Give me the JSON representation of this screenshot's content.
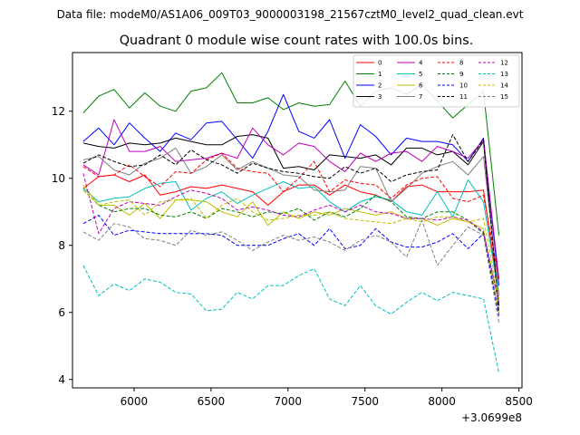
{
  "chart_data": {
    "type": "line",
    "suptitle": "Data file: modeM0/AS1A06_009T03_9000003198_21567cztM0_level2_quad_clean.evt",
    "title": "Quadrant 0 module wise count rates with 100.0s bins.",
    "xlabel": "",
    "ylabel": "",
    "offset_label": "+3.0699e8",
    "xlim": [
      5600,
      8520
    ],
    "ylim": [
      3.75,
      13.75
    ],
    "xticks": [
      6000,
      6500,
      7000,
      7500,
      8000,
      8500
    ],
    "yticks": [
      4,
      6,
      8,
      10,
      12
    ],
    "grid": false,
    "legend_position": "top-right",
    "x": [
      5670,
      5770,
      5870,
      5970,
      6070,
      6170,
      6270,
      6370,
      6470,
      6570,
      6670,
      6770,
      6870,
      6970,
      7070,
      7170,
      7270,
      7370,
      7470,
      7570,
      7670,
      7770,
      7870,
      7970,
      8070,
      8170,
      8270,
      8370
    ],
    "series": [
      {
        "name": "0",
        "color": "#ff0000",
        "dash": "solid",
        "values": [
          9.7,
          10.05,
          10.1,
          9.9,
          10.1,
          9.5,
          9.6,
          9.75,
          9.7,
          9.8,
          9.7,
          9.6,
          9.2,
          9.6,
          9.8,
          9.8,
          9.5,
          9.8,
          9.6,
          9.5,
          9.3,
          9.75,
          9.8,
          9.6,
          9.6,
          9.6,
          9.65,
          6.5
        ]
      },
      {
        "name": "1",
        "color": "#008000",
        "dash": "solid",
        "values": [
          11.95,
          12.45,
          12.65,
          12.1,
          12.55,
          12.15,
          12.0,
          12.6,
          12.7,
          13.15,
          12.25,
          12.25,
          12.4,
          12.05,
          12.25,
          12.15,
          12.2,
          12.9,
          12.15,
          12.6,
          12.7,
          12.5,
          12.8,
          12.3,
          11.8,
          12.2,
          12.6,
          8.3
        ]
      },
      {
        "name": "2",
        "color": "#0000ff",
        "dash": "solid",
        "values": [
          11.1,
          11.5,
          11.0,
          11.65,
          11.2,
          10.8,
          11.35,
          11.15,
          11.65,
          11.7,
          11.15,
          10.6,
          11.4,
          12.5,
          11.4,
          11.2,
          11.75,
          10.6,
          11.6,
          11.25,
          10.7,
          11.2,
          11.1,
          11.1,
          11.0,
          10.5,
          11.2,
          6.8
        ]
      },
      {
        "name": "3",
        "color": "#000000",
        "dash": "solid",
        "values": [
          11.05,
          10.95,
          10.9,
          11.05,
          11.0,
          11.05,
          11.2,
          11.1,
          11.0,
          11.0,
          11.25,
          11.3,
          11.2,
          10.3,
          10.35,
          10.25,
          10.7,
          10.65,
          10.6,
          10.7,
          10.4,
          10.9,
          10.9,
          10.7,
          10.8,
          10.4,
          11.1,
          6.2
        ]
      },
      {
        "name": "4",
        "color": "#bf00bf",
        "dash": "solid",
        "values": [
          10.4,
          10.1,
          11.75,
          10.8,
          10.8,
          10.95,
          10.5,
          10.55,
          10.6,
          10.75,
          10.6,
          11.5,
          11.0,
          10.7,
          11.05,
          10.95,
          10.5,
          10.2,
          10.75,
          10.5,
          10.75,
          10.8,
          10.5,
          10.95,
          10.8,
          10.6,
          11.15,
          7.0
        ]
      },
      {
        "name": "5",
        "color": "#00bfbf",
        "dash": "solid",
        "values": [
          9.7,
          9.3,
          9.4,
          9.45,
          9.7,
          9.85,
          9.9,
          9.05,
          9.4,
          9.6,
          9.25,
          9.5,
          9.7,
          9.9,
          9.7,
          9.75,
          9.3,
          9.0,
          9.3,
          9.45,
          9.35,
          9.0,
          8.9,
          9.6,
          8.85,
          9.95,
          9.3,
          6.5
        ]
      },
      {
        "name": "6",
        "color": "#bfbf00",
        "dash": "solid",
        "values": [
          9.8,
          9.2,
          9.2,
          8.9,
          9.25,
          8.8,
          9.35,
          9.35,
          9.3,
          9.0,
          8.85,
          9.3,
          8.6,
          9.0,
          8.8,
          9.0,
          8.9,
          9.1,
          9.0,
          8.9,
          9.0,
          8.8,
          8.8,
          8.6,
          8.8,
          8.7,
          8.5,
          6.0
        ]
      },
      {
        "name": "7",
        "color": "#808080",
        "dash": "solid",
        "values": [
          10.55,
          10.65,
          10.25,
          10.1,
          10.45,
          10.6,
          10.9,
          10.15,
          10.35,
          10.7,
          10.25,
          10.5,
          10.3,
          10.1,
          10.05,
          9.65,
          9.6,
          9.65,
          10.35,
          10.3,
          9.3,
          9.7,
          10.15,
          10.35,
          10.5,
          10.1,
          10.65,
          6.5
        ]
      },
      {
        "name": "8",
        "color": "#ff0000",
        "dash": "dashed",
        "values": [
          10.35,
          10.05,
          10.1,
          10.4,
          10.05,
          9.75,
          10.2,
          10.15,
          10.55,
          10.75,
          10.3,
          10.2,
          10.15,
          9.6,
          10.0,
          10.5,
          9.6,
          9.95,
          9.85,
          9.8,
          9.4,
          9.8,
          10.0,
          10.05,
          9.4,
          9.3,
          9.5,
          7.0
        ]
      },
      {
        "name": "9",
        "color": "#008000",
        "dash": "dashed",
        "values": [
          9.65,
          9.2,
          9.0,
          9.1,
          9.1,
          8.9,
          8.85,
          9.0,
          8.8,
          9.1,
          9.0,
          8.85,
          9.0,
          8.95,
          9.1,
          8.75,
          9.0,
          8.85,
          9.1,
          9.5,
          9.3,
          8.85,
          8.8,
          9.0,
          9.0,
          8.75,
          8.35,
          6.3
        ]
      },
      {
        "name": "10",
        "color": "#0000ff",
        "dash": "dashed",
        "values": [
          8.65,
          8.9,
          8.3,
          8.45,
          8.4,
          8.35,
          8.35,
          8.35,
          8.35,
          8.3,
          8.0,
          8.0,
          8.0,
          8.2,
          8.35,
          8.0,
          8.5,
          7.9,
          8.0,
          8.5,
          8.1,
          7.95,
          7.95,
          8.1,
          8.35,
          7.9,
          8.35,
          5.9
        ]
      },
      {
        "name": "11",
        "color": "#000000",
        "dash": "dashed",
        "values": [
          10.45,
          10.7,
          10.5,
          10.35,
          10.4,
          10.7,
          10.4,
          10.85,
          10.55,
          10.4,
          10.15,
          10.45,
          10.3,
          10.2,
          10.15,
          10.05,
          10.0,
          10.35,
          10.15,
          10.3,
          9.9,
          10.1,
          10.2,
          10.25,
          11.3,
          10.5,
          11.15,
          6.0
        ]
      },
      {
        "name": "12",
        "color": "#bf00bf",
        "dash": "dashed",
        "values": [
          10.15,
          8.35,
          9.1,
          9.3,
          9.25,
          9.2,
          9.45,
          9.65,
          9.55,
          9.4,
          9.05,
          9.15,
          9.05,
          8.9,
          8.85,
          9.05,
          9.2,
          9.0,
          9.2,
          9.0,
          8.95,
          8.8,
          8.8,
          8.75,
          8.85,
          8.75,
          8.4,
          6.3
        ]
      },
      {
        "name": "13",
        "color": "#00bfbf",
        "dash": "dashed",
        "values": [
          7.4,
          6.5,
          6.85,
          6.65,
          7.0,
          6.9,
          6.6,
          6.55,
          6.05,
          6.1,
          6.6,
          6.4,
          6.8,
          6.8,
          7.1,
          7.3,
          6.4,
          6.2,
          6.8,
          6.2,
          5.95,
          6.3,
          6.6,
          6.35,
          6.6,
          6.5,
          6.4,
          4.2
        ]
      },
      {
        "name": "14",
        "color": "#bfbf00",
        "dash": "dashed",
        "values": [
          9.65,
          9.2,
          9.3,
          9.35,
          8.9,
          9.3,
          9.35,
          9.4,
          8.8,
          9.2,
          9.4,
          9.0,
          8.75,
          8.8,
          8.9,
          8.9,
          9.0,
          8.8,
          8.75,
          8.7,
          8.65,
          8.8,
          8.7,
          8.85,
          8.85,
          8.7,
          8.8,
          6.4
        ]
      },
      {
        "name": "15",
        "color": "#808080",
        "dash": "dashed",
        "values": [
          8.4,
          8.15,
          8.65,
          8.55,
          8.2,
          8.15,
          8.0,
          8.45,
          8.3,
          8.4,
          8.15,
          7.85,
          8.1,
          8.3,
          8.15,
          8.25,
          8.1,
          7.85,
          8.15,
          8.3,
          8.1,
          7.65,
          8.75,
          7.4,
          8.0,
          8.55,
          8.3,
          5.7
        ]
      }
    ]
  }
}
